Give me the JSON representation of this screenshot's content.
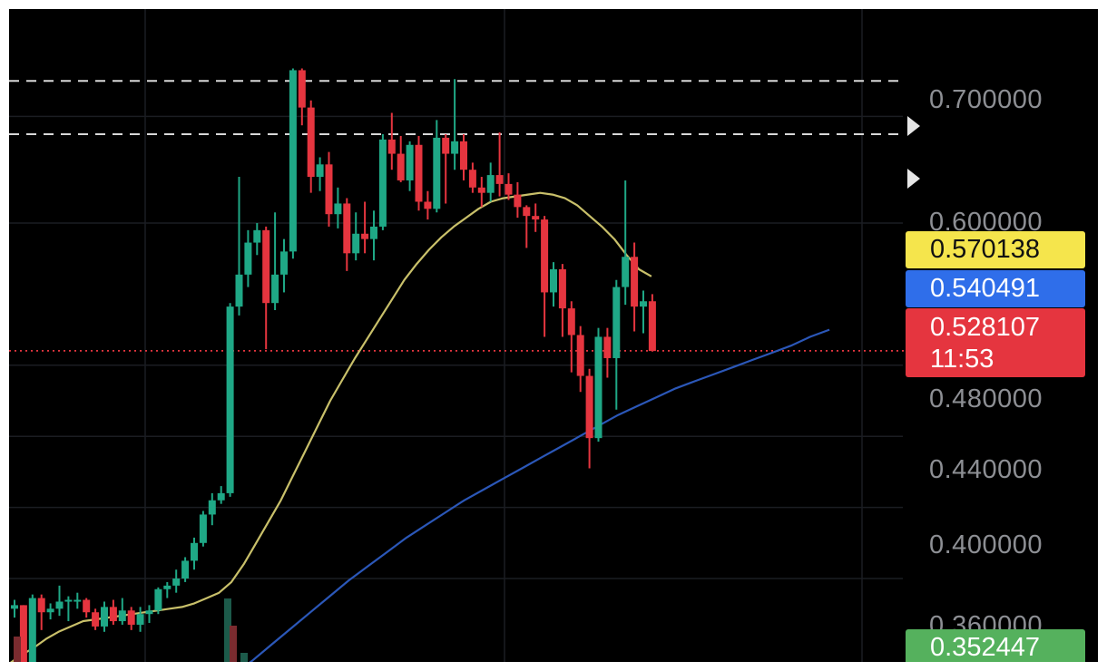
{
  "chart_data": {
    "type": "candlestick",
    "y_ticks": [
      "0.700000",
      "0.600000",
      "0.480000",
      "0.440000",
      "0.400000",
      "0.360000"
    ],
    "ylim": [
      0.35,
      0.72
    ],
    "last_price": "0.528107",
    "countdown": "11:53",
    "indicator_tags": [
      {
        "name": "yellow_ma",
        "value": "0.570138",
        "color": "#f5e54c"
      },
      {
        "name": "blue_ma",
        "value": "0.540491",
        "color": "#2f6eea"
      },
      {
        "name": "green_ma",
        "value": "0.352447",
        "color": "#55b15d"
      }
    ],
    "horizontal_levels": [
      0.68,
      0.65
    ],
    "colors": {
      "up": "#1fa886",
      "down": "#e5353f",
      "yellow_ma": "#c9c06a",
      "blue_ma": "#2b57b8",
      "green_ma": "#3e8a4a",
      "grid": "#1b1d22"
    },
    "candles": [
      [
        0.383,
        0.388,
        0.378,
        0.385
      ],
      [
        0.385,
        0.385,
        0.349,
        0.351
      ],
      [
        0.351,
        0.391,
        0.349,
        0.389
      ],
      [
        0.389,
        0.391,
        0.371,
        0.381
      ],
      [
        0.381,
        0.386,
        0.377,
        0.383
      ],
      [
        0.383,
        0.396,
        0.379,
        0.387
      ],
      [
        0.387,
        0.39,
        0.376,
        0.388
      ],
      [
        0.388,
        0.392,
        0.383,
        0.388
      ],
      [
        0.388,
        0.389,
        0.378,
        0.381
      ],
      [
        0.381,
        0.383,
        0.371,
        0.373
      ],
      [
        0.373,
        0.387,
        0.37,
        0.384
      ],
      [
        0.384,
        0.388,
        0.374,
        0.376
      ],
      [
        0.376,
        0.389,
        0.374,
        0.382
      ],
      [
        0.382,
        0.384,
        0.371,
        0.374
      ],
      [
        0.374,
        0.384,
        0.37,
        0.38
      ],
      [
        0.38,
        0.385,
        0.375,
        0.382
      ],
      [
        0.382,
        0.395,
        0.38,
        0.394
      ],
      [
        0.394,
        0.398,
        0.389,
        0.396
      ],
      [
        0.396,
        0.405,
        0.392,
        0.4
      ],
      [
        0.4,
        0.412,
        0.398,
        0.41
      ],
      [
        0.41,
        0.423,
        0.405,
        0.42
      ],
      [
        0.42,
        0.438,
        0.418,
        0.436
      ],
      [
        0.436,
        0.448,
        0.43,
        0.444
      ],
      [
        0.444,
        0.452,
        0.442,
        0.448
      ],
      [
        0.448,
        0.555,
        0.446,
        0.553
      ],
      [
        0.553,
        0.626,
        0.548,
        0.571
      ],
      [
        0.571,
        0.596,
        0.564,
        0.589
      ],
      [
        0.589,
        0.6,
        0.582,
        0.596
      ],
      [
        0.596,
        0.598,
        0.529,
        0.555
      ],
      [
        0.555,
        0.606,
        0.551,
        0.571
      ],
      [
        0.571,
        0.591,
        0.561,
        0.584
      ],
      [
        0.584,
        0.687,
        0.58,
        0.686
      ],
      [
        0.686,
        0.687,
        0.655,
        0.665
      ],
      [
        0.665,
        0.669,
        0.617,
        0.626
      ],
      [
        0.626,
        0.637,
        0.618,
        0.633
      ],
      [
        0.633,
        0.64,
        0.598,
        0.605
      ],
      [
        0.605,
        0.62,
        0.597,
        0.611
      ],
      [
        0.611,
        0.614,
        0.573,
        0.583
      ],
      [
        0.583,
        0.606,
        0.579,
        0.594
      ],
      [
        0.594,
        0.612,
        0.583,
        0.591
      ],
      [
        0.591,
        0.607,
        0.579,
        0.598
      ],
      [
        0.598,
        0.65,
        0.596,
        0.647
      ],
      [
        0.647,
        0.662,
        0.63,
        0.639
      ],
      [
        0.639,
        0.649,
        0.623,
        0.624
      ],
      [
        0.624,
        0.646,
        0.618,
        0.644
      ],
      [
        0.644,
        0.649,
        0.607,
        0.612
      ],
      [
        0.612,
        0.618,
        0.602,
        0.608
      ],
      [
        0.608,
        0.658,
        0.606,
        0.648
      ],
      [
        0.648,
        0.65,
        0.611,
        0.639
      ],
      [
        0.639,
        0.681,
        0.63,
        0.646
      ],
      [
        0.646,
        0.65,
        0.624,
        0.63
      ],
      [
        0.63,
        0.634,
        0.617,
        0.62
      ],
      [
        0.62,
        0.626,
        0.609,
        0.617
      ],
      [
        0.617,
        0.634,
        0.612,
        0.627
      ],
      [
        0.627,
        0.651,
        0.615,
        0.622
      ],
      [
        0.622,
        0.628,
        0.613,
        0.616
      ],
      [
        0.616,
        0.623,
        0.603,
        0.609
      ],
      [
        0.609,
        0.61,
        0.586,
        0.604
      ],
      [
        0.604,
        0.611,
        0.595,
        0.602
      ],
      [
        0.602,
        0.604,
        0.536,
        0.561
      ],
      [
        0.561,
        0.578,
        0.553,
        0.574
      ],
      [
        0.574,
        0.577,
        0.536,
        0.552
      ],
      [
        0.552,
        0.556,
        0.516,
        0.537
      ],
      [
        0.537,
        0.542,
        0.505,
        0.514
      ],
      [
        0.514,
        0.518,
        0.462,
        0.479
      ],
      [
        0.479,
        0.541,
        0.477,
        0.536
      ],
      [
        0.536,
        0.541,
        0.513,
        0.524
      ],
      [
        0.524,
        0.568,
        0.495,
        0.564
      ],
      [
        0.564,
        0.624,
        0.554,
        0.581
      ],
      [
        0.581,
        0.589,
        0.539,
        0.553
      ],
      [
        0.553,
        0.562,
        0.538,
        0.556
      ],
      [
        0.556,
        0.56,
        0.531,
        0.528
      ]
    ],
    "yellow_ma": [
      0.352,
      0.357,
      0.361,
      0.366,
      0.37,
      0.373,
      0.376,
      0.377,
      0.378,
      0.379,
      0.38,
      0.381,
      0.382,
      0.383,
      0.384,
      0.386,
      0.389,
      0.392,
      0.398,
      0.408,
      0.42,
      0.432,
      0.444,
      0.458,
      0.472,
      0.486,
      0.5,
      0.512,
      0.524,
      0.535,
      0.546,
      0.557,
      0.568,
      0.577,
      0.585,
      0.592,
      0.598,
      0.603,
      0.608,
      0.612,
      0.614,
      0.615,
      0.616,
      0.617,
      0.616,
      0.614,
      0.61,
      0.604,
      0.598,
      0.591,
      0.582,
      0.574,
      0.57
    ],
    "blue_ma": [
      0.331,
      0.338,
      0.346,
      0.354,
      0.363,
      0.372,
      0.381,
      0.39,
      0.399,
      0.407,
      0.415,
      0.423,
      0.43,
      0.437,
      0.444,
      0.45,
      0.456,
      0.462,
      0.468,
      0.474,
      0.48,
      0.486,
      0.492,
      0.497,
      0.502,
      0.507,
      0.511,
      0.515,
      0.519,
      0.523,
      0.527,
      0.531,
      0.536,
      0.54
    ],
    "green_ma": [
      0.33,
      0.333,
      0.336,
      0.339,
      0.342,
      0.345,
      0.348,
      0.351,
      0.352
    ]
  }
}
